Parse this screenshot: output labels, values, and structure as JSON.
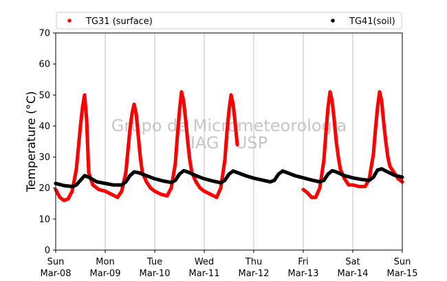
{
  "chart_data": {
    "type": "scatter",
    "ylabel": "Temperature (°C)",
    "ylim": [
      0,
      70
    ],
    "yticks": [
      0,
      10,
      20,
      30,
      40,
      50,
      60,
      70
    ],
    "xlim": [
      "2015-03-08 00:00",
      "2015-03-15 00:00"
    ],
    "xticks": [
      {
        "day": "Sun",
        "date": "Mar-08"
      },
      {
        "day": "Mon",
        "date": "Mar-09"
      },
      {
        "day": "Tue",
        "date": "Mar-10"
      },
      {
        "day": "Wed",
        "date": "Mar-11"
      },
      {
        "day": "Thu",
        "date": "Mar-12"
      },
      {
        "day": "Fri",
        "date": "Mar-13"
      },
      {
        "day": "Sat",
        "date": "Mar-14"
      },
      {
        "day": "Sun",
        "date": "Mar-15"
      }
    ],
    "grid": "vertical",
    "legend_placement": "top",
    "watermark": [
      "Grupo de Micrometeorologia",
      "IAG / USP"
    ],
    "series": [
      {
        "name": "TG31 (surface)",
        "color": "#ff0000",
        "points": [
          [
            "2015-03-08 00:00",
            19.5
          ],
          [
            "2015-03-08 02:00",
            17.0
          ],
          [
            "2015-03-08 04:00",
            16.0
          ],
          [
            "2015-03-08 06:00",
            16.5
          ],
          [
            "2015-03-08 08:00",
            19.0
          ],
          [
            "2015-03-08 10:00",
            26.0
          ],
          [
            "2015-03-08 11:00",
            33.0
          ],
          [
            "2015-03-08 12:00",
            40.0
          ],
          [
            "2015-03-08 13:00",
            46.0
          ],
          [
            "2015-03-08 14:00",
            50.0
          ],
          [
            "2015-03-08 15:00",
            42.0
          ],
          [
            "2015-03-08 16:00",
            25.0
          ],
          [
            "2015-03-08 18:00",
            21.0
          ],
          [
            "2015-03-08 21:00",
            19.5
          ],
          [
            "2015-03-09 00:00",
            19.0
          ],
          [
            "2015-03-09 03:00",
            18.0
          ],
          [
            "2015-03-09 06:00",
            17.0
          ],
          [
            "2015-03-09 08:00",
            19.0
          ],
          [
            "2015-03-09 10:00",
            25.0
          ],
          [
            "2015-03-09 11:00",
            32.0
          ],
          [
            "2015-03-09 12:00",
            39.0
          ],
          [
            "2015-03-09 13:00",
            44.0
          ],
          [
            "2015-03-09 14:00",
            47.0
          ],
          [
            "2015-03-09 15:00",
            44.0
          ],
          [
            "2015-03-09 16:00",
            37.0
          ],
          [
            "2015-03-09 17:00",
            30.0
          ],
          [
            "2015-03-09 18:00",
            25.0
          ],
          [
            "2015-03-09 20:00",
            22.0
          ],
          [
            "2015-03-09 22:00",
            20.0
          ],
          [
            "2015-03-10 00:00",
            19.0
          ],
          [
            "2015-03-10 03:00",
            18.0
          ],
          [
            "2015-03-10 06:00",
            17.5
          ],
          [
            "2015-03-10 08:00",
            20.0
          ],
          [
            "2015-03-10 10:00",
            28.0
          ],
          [
            "2015-03-10 11:00",
            37.0
          ],
          [
            "2015-03-10 12:00",
            45.0
          ],
          [
            "2015-03-10 13:00",
            51.0
          ],
          [
            "2015-03-10 14:00",
            48.0
          ],
          [
            "2015-03-10 15:00",
            42.0
          ],
          [
            "2015-03-10 16:00",
            35.0
          ],
          [
            "2015-03-10 17:00",
            29.0
          ],
          [
            "2015-03-10 18:00",
            25.0
          ],
          [
            "2015-03-10 20:00",
            22.0
          ],
          [
            "2015-03-10 22:00",
            20.0
          ],
          [
            "2015-03-11 00:00",
            19.0
          ],
          [
            "2015-03-11 03:00",
            18.0
          ],
          [
            "2015-03-11 06:00",
            17.0
          ],
          [
            "2015-03-11 08:00",
            20.0
          ],
          [
            "2015-03-11 10:00",
            29.0
          ],
          [
            "2015-03-11 11:00",
            38.0
          ],
          [
            "2015-03-11 12:00",
            45.0
          ],
          [
            "2015-03-11 13:00",
            50.0
          ],
          [
            "2015-03-11 14:00",
            47.0
          ],
          [
            "2015-03-11 15:00",
            41.0
          ],
          [
            "2015-03-11 16:00",
            34.0
          ],
          [
            "2015-03-13 00:00",
            19.5
          ],
          [
            "2015-03-13 02:00",
            18.5
          ],
          [
            "2015-03-13 04:00",
            17.0
          ],
          [
            "2015-03-13 06:00",
            17.0
          ],
          [
            "2015-03-13 08:00",
            20.0
          ],
          [
            "2015-03-13 10:00",
            29.0
          ],
          [
            "2015-03-13 11:00",
            38.0
          ],
          [
            "2015-03-13 12:00",
            46.0
          ],
          [
            "2015-03-13 13:00",
            51.0
          ],
          [
            "2015-03-13 14:00",
            48.0
          ],
          [
            "2015-03-13 15:00",
            42.0
          ],
          [
            "2015-03-13 16:00",
            35.0
          ],
          [
            "2015-03-13 17:00",
            30.0
          ],
          [
            "2015-03-13 18:00",
            26.0
          ],
          [
            "2015-03-13 20:00",
            23.0
          ],
          [
            "2015-03-13 22:00",
            21.0
          ],
          [
            "2015-03-14 00:00",
            21.0
          ],
          [
            "2015-03-14 03:00",
            20.5
          ],
          [
            "2015-03-14 06:00",
            20.5
          ],
          [
            "2015-03-14 08:00",
            23.0
          ],
          [
            "2015-03-14 10:00",
            31.0
          ],
          [
            "2015-03-14 11:00",
            39.0
          ],
          [
            "2015-03-14 12:00",
            46.0
          ],
          [
            "2015-03-14 13:00",
            51.0
          ],
          [
            "2015-03-14 14:00",
            48.0
          ],
          [
            "2015-03-14 15:00",
            41.0
          ],
          [
            "2015-03-14 16:00",
            35.0
          ],
          [
            "2015-03-14 17:00",
            30.0
          ],
          [
            "2015-03-14 18:00",
            27.0
          ],
          [
            "2015-03-14 20:00",
            25.0
          ],
          [
            "2015-03-14 22:00",
            23.0
          ],
          [
            "2015-03-15 00:00",
            22.0
          ]
        ]
      },
      {
        "name": "TG41(soil)",
        "color": "#000000",
        "points": [
          [
            "2015-03-08 00:00",
            21.5
          ],
          [
            "2015-03-08 04:00",
            20.8
          ],
          [
            "2015-03-08 08:00",
            20.5
          ],
          [
            "2015-03-08 10:00",
            21.0
          ],
          [
            "2015-03-08 12:00",
            22.5
          ],
          [
            "2015-03-08 14:00",
            24.0
          ],
          [
            "2015-03-08 16:00",
            23.5
          ],
          [
            "2015-03-08 20:00",
            22.0
          ],
          [
            "2015-03-09 00:00",
            21.5
          ],
          [
            "2015-03-09 04:00",
            21.0
          ],
          [
            "2015-03-09 08:00",
            21.0
          ],
          [
            "2015-03-09 10:00",
            22.0
          ],
          [
            "2015-03-09 12:00",
            24.0
          ],
          [
            "2015-03-09 14:00",
            25.2
          ],
          [
            "2015-03-09 16:00",
            25.0
          ],
          [
            "2015-03-09 20:00",
            24.0
          ],
          [
            "2015-03-10 00:00",
            23.0
          ],
          [
            "2015-03-10 04:00",
            22.3
          ],
          [
            "2015-03-10 08:00",
            21.8
          ],
          [
            "2015-03-10 10:00",
            22.5
          ],
          [
            "2015-03-10 12:00",
            24.5
          ],
          [
            "2015-03-10 14:00",
            25.6
          ],
          [
            "2015-03-10 16:00",
            25.2
          ],
          [
            "2015-03-10 20:00",
            24.0
          ],
          [
            "2015-03-11 00:00",
            23.0
          ],
          [
            "2015-03-11 04:00",
            22.3
          ],
          [
            "2015-03-11 08:00",
            21.7
          ],
          [
            "2015-03-11 10:00",
            22.5
          ],
          [
            "2015-03-11 12:00",
            24.5
          ],
          [
            "2015-03-11 14:00",
            25.5
          ],
          [
            "2015-03-11 16:00",
            25.0
          ],
          [
            "2015-03-11 20:00",
            24.0
          ],
          [
            "2015-03-12 00:00",
            23.2
          ],
          [
            "2015-03-12 04:00",
            22.6
          ],
          [
            "2015-03-12 08:00",
            22.0
          ],
          [
            "2015-03-12 10:00",
            22.5
          ],
          [
            "2015-03-12 12:00",
            24.5
          ],
          [
            "2015-03-12 14:00",
            25.5
          ],
          [
            "2015-03-12 16:00",
            25.0
          ],
          [
            "2015-03-12 20:00",
            24.0
          ],
          [
            "2015-03-13 00:00",
            23.3
          ],
          [
            "2015-03-13 04:00",
            22.6
          ],
          [
            "2015-03-13 08:00",
            22.0
          ],
          [
            "2015-03-13 10:00",
            22.5
          ],
          [
            "2015-03-13 12:00",
            24.5
          ],
          [
            "2015-03-13 14:00",
            25.6
          ],
          [
            "2015-03-13 16:00",
            25.2
          ],
          [
            "2015-03-13 20:00",
            24.0
          ],
          [
            "2015-03-14 00:00",
            23.3
          ],
          [
            "2015-03-14 04:00",
            22.8
          ],
          [
            "2015-03-14 08:00",
            22.5
          ],
          [
            "2015-03-14 10:00",
            23.5
          ],
          [
            "2015-03-14 12:00",
            25.8
          ],
          [
            "2015-03-14 14:00",
            26.2
          ],
          [
            "2015-03-14 16:00",
            25.5
          ],
          [
            "2015-03-14 20:00",
            24.2
          ],
          [
            "2015-03-15 00:00",
            23.5
          ]
        ]
      }
    ]
  }
}
